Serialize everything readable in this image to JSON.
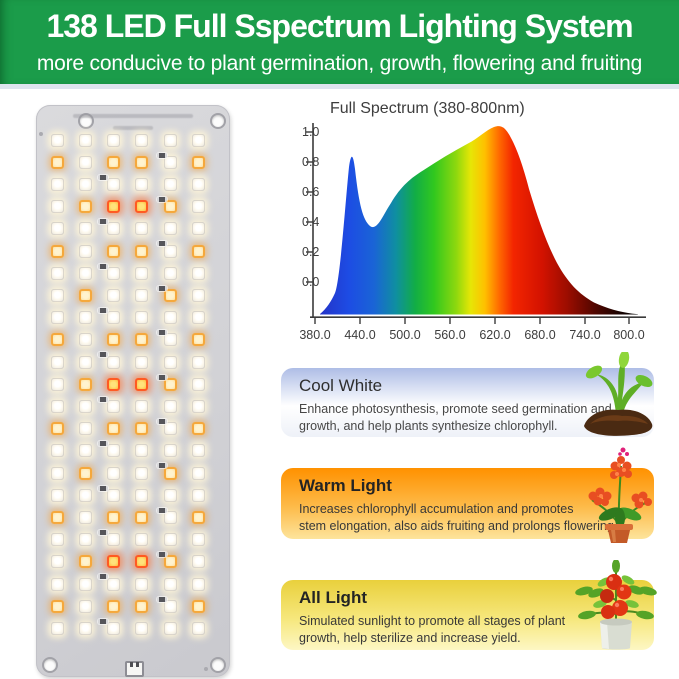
{
  "header": {
    "title": "138 LED Full Sspectrum Lighting System",
    "subtitle": "more conducive to plant germination, growth, flowering and fruiting",
    "bg_color": "#1b9c4a",
    "text_color": "#ffffff"
  },
  "panel": {
    "description": "led-circuit-board",
    "led_total": 138,
    "grid": {
      "columns": 6,
      "legend": {
        "W": "cool-white-led",
        "O": "warm-orange-led",
        "R": "red-led"
      },
      "rows": [
        "WWWWWW",
        "OWOOWO",
        "WWWWWW",
        "WORROW",
        "WWWWWW",
        "OWOOWO",
        "WWWWWW",
        "WOWWOW",
        "WWWWWW",
        "OWOOWO",
        "WWWWWW",
        "WORROW",
        "WWWWWW",
        "OWOOWO",
        "WWWWWW",
        "WOWWOW",
        "WWWWWW",
        "OWOOWO",
        "WWWWWW",
        "WORROW",
        "WWWWWW",
        "OWOOWO",
        "WWWWWW"
      ]
    }
  },
  "chart": {
    "title": "Full Spectrum (380-800nm)",
    "x_ticks": [
      "380.0",
      "440.0",
      "500.0",
      "560.0",
      "620.0",
      "680.0",
      "740.0",
      "800.0"
    ],
    "y_ticks": [
      "1.0",
      "0.8",
      "0.6",
      "0.4",
      "0.2",
      "0.0"
    ]
  },
  "chart_data": {
    "type": "area",
    "title": "Full Spectrum (380-800nm)",
    "xlabel": "",
    "ylabel": "",
    "x_range": [
      380,
      800
    ],
    "y_range": [
      0.0,
      1.0
    ],
    "grid": false,
    "fill": "spectral-rainbow-gradient",
    "x": [
      380,
      400,
      415,
      425,
      430,
      435,
      440,
      450,
      455,
      465,
      480,
      500,
      520,
      540,
      560,
      575,
      590,
      605,
      615,
      625,
      635,
      650,
      665,
      680,
      700,
      720,
      740,
      760,
      780,
      800
    ],
    "y": [
      0.0,
      0.04,
      0.18,
      0.55,
      0.75,
      0.83,
      0.62,
      0.42,
      0.37,
      0.42,
      0.52,
      0.62,
      0.72,
      0.78,
      0.83,
      0.86,
      0.9,
      0.97,
      1.0,
      0.98,
      0.88,
      0.7,
      0.5,
      0.34,
      0.19,
      0.1,
      0.05,
      0.02,
      0.01,
      0.0
    ]
  },
  "cards": [
    {
      "title": "Cool White",
      "body_lines": [
        "Enhance photosynthesis, promote seed germination and",
        "growth, and help plants synthesize chlorophyll."
      ],
      "image": "seedling",
      "accent_top": "#aebde6",
      "accent_mid": "#ffffff",
      "accent_bottom": "#eef1f8"
    },
    {
      "title": "Warm Light",
      "body_lines": [
        "Increases chlorophyll accumulation and promotes",
        "stem elongation, also aids fruiting and prolongs flowering."
      ],
      "image": "flower-pot",
      "accent_top": "#ff9100",
      "accent_mid": "#fdbb4a",
      "accent_bottom": "#fde49c"
    },
    {
      "title": "All Light",
      "body_lines": [
        "Simulated sunlight to promote all stages of plant",
        "growth, help sterilize and increase yield."
      ],
      "image": "tomato-plant",
      "accent_top": "#e9d03c",
      "accent_mid": "#f6e77c",
      "accent_bottom": "#fdf7c4"
    }
  ]
}
